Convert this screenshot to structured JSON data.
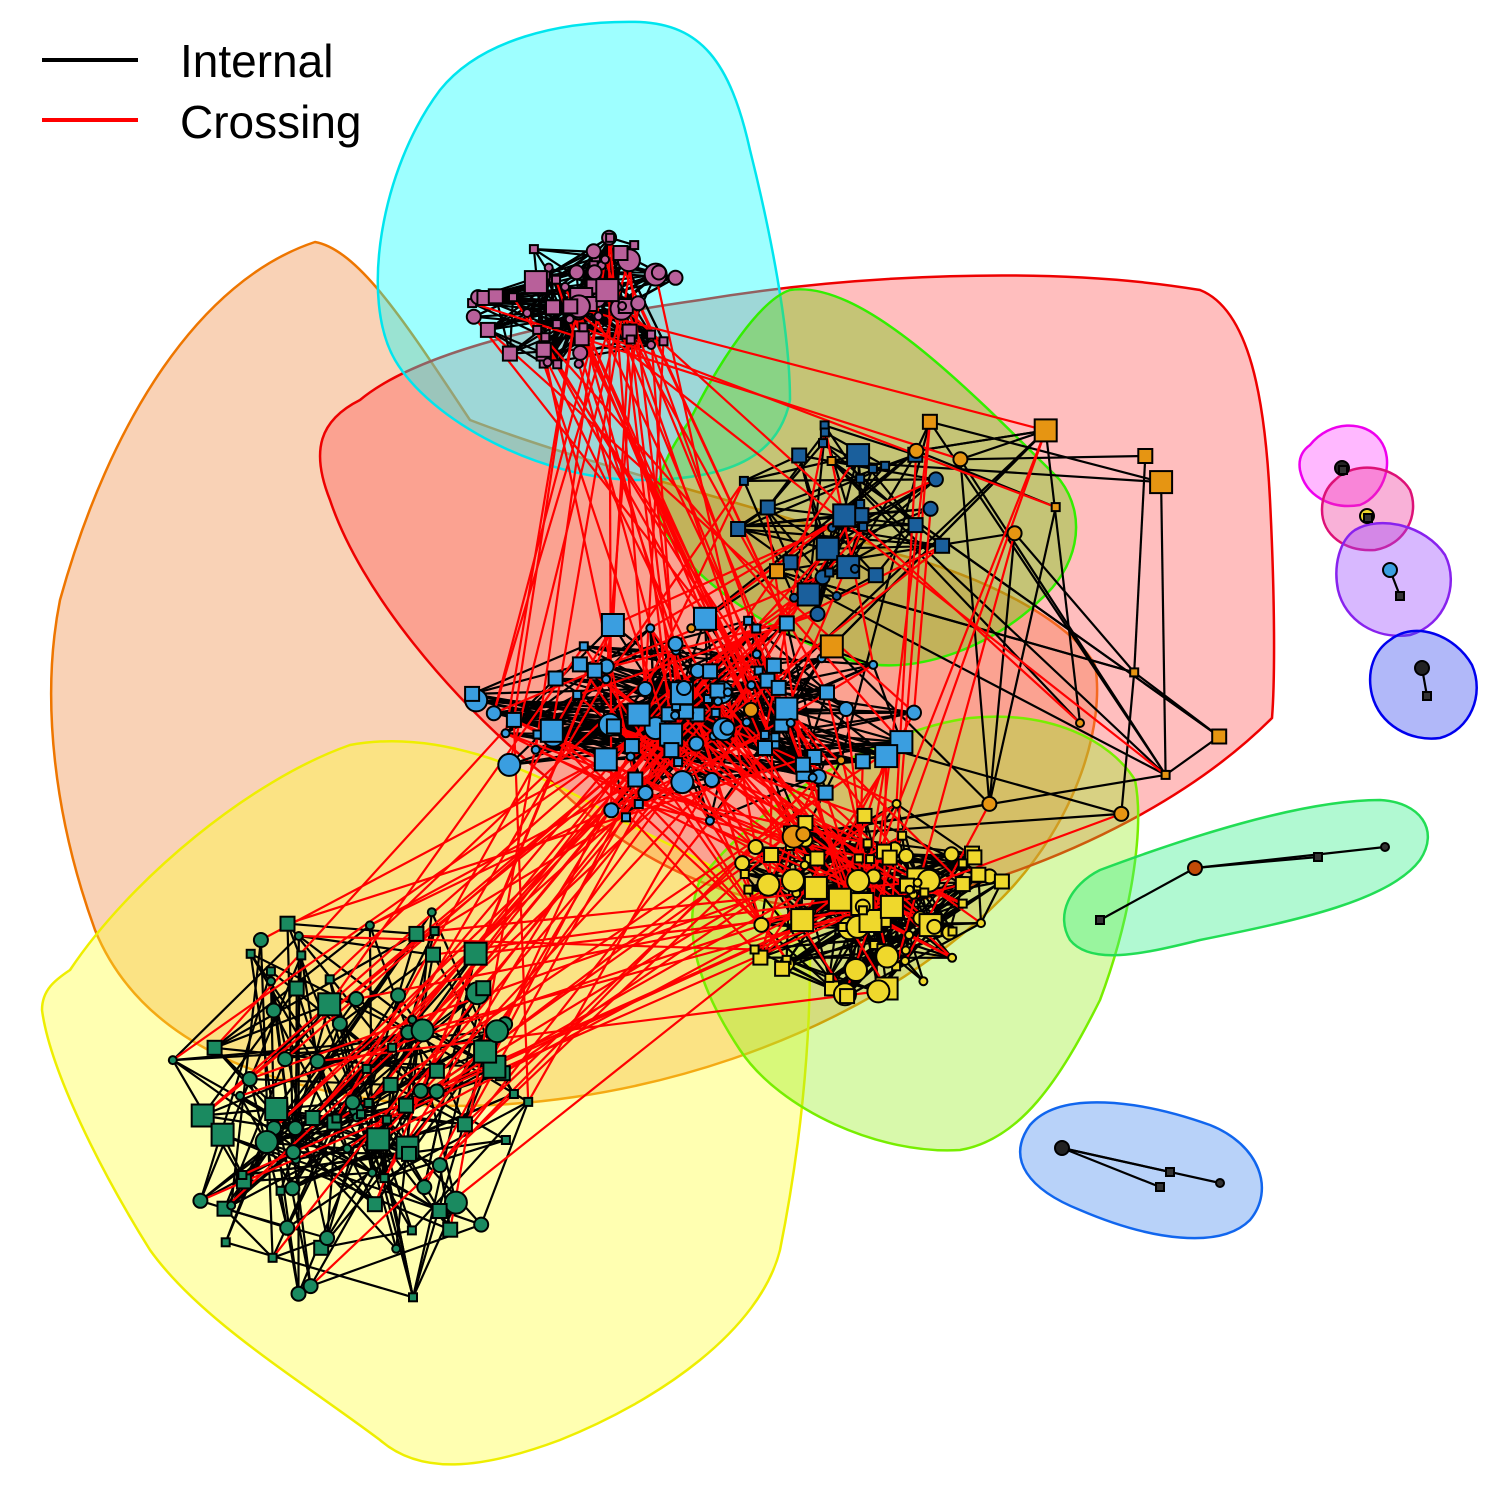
{
  "legend": {
    "internal_label": "Internal",
    "crossing_label": "Crossing",
    "internal_color": "#000000",
    "crossing_color": "#ff0000"
  },
  "communities": [
    {
      "id": "cyan",
      "fill": "#00ffff",
      "stroke": "#00e5ee"
    },
    {
      "id": "orange",
      "fill": "#f08a40",
      "stroke": "#ee7600"
    },
    {
      "id": "red",
      "fill": "#ff5555",
      "stroke": "#ee0000"
    },
    {
      "id": "green",
      "fill": "#66cc00",
      "stroke": "#33ee00"
    },
    {
      "id": "yellow",
      "fill": "#ffff33",
      "stroke": "#eeee00"
    },
    {
      "id": "lime",
      "fill": "#99ee22",
      "stroke": "#77ee00"
    },
    {
      "id": "mint",
      "fill": "#33ee88",
      "stroke": "#22dd55"
    },
    {
      "id": "blue",
      "fill": "#4488ee",
      "stroke": "#1166ee"
    },
    {
      "id": "magenta",
      "fill": "#ff44ff",
      "stroke": "#ee00ee"
    },
    {
      "id": "pink",
      "fill": "#ee3399",
      "stroke": "#dd1177"
    },
    {
      "id": "violet",
      "fill": "#9944ff",
      "stroke": "#8822ee"
    },
    {
      "id": "navy",
      "fill": "#3344ee",
      "stroke": "#0000ee"
    }
  ],
  "node_colors": {
    "purple": "#b8609a",
    "sky": "#3a9ee0",
    "dark_blue": "#1a5f9c",
    "amber": "#e69512",
    "gold": "#efd82c",
    "teal": "#1a8a60",
    "brown": "#c24a06"
  }
}
